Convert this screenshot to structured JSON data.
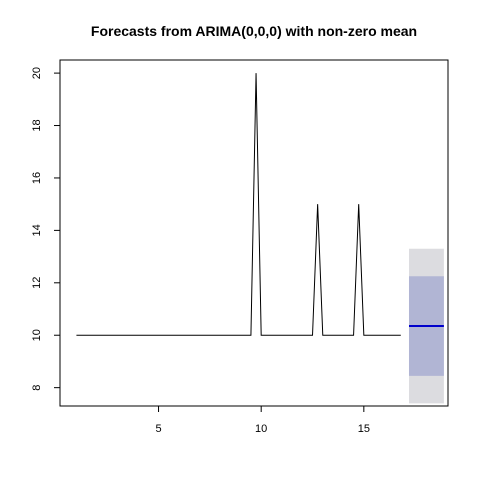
{
  "chart_data": {
    "type": "line",
    "title": "Forecasts from ARIMA(0,0,0) with non-zero mean",
    "xlabel": "",
    "ylabel": "",
    "xlim": [
      0.2,
      19.1
    ],
    "ylim": [
      7.3,
      20.5
    ],
    "x_ticks": [
      5,
      10,
      15
    ],
    "y_ticks": [
      8,
      10,
      12,
      14,
      16,
      18,
      20
    ],
    "grid": false,
    "series": [
      {
        "points": [
          [
            1,
            10
          ],
          [
            9.5,
            10
          ],
          [
            9.75,
            20
          ],
          [
            10,
            10
          ],
          [
            12.5,
            10
          ],
          [
            12.75,
            15
          ],
          [
            13,
            10
          ],
          [
            14.5,
            10
          ],
          [
            14.75,
            15
          ],
          [
            15,
            10
          ],
          [
            16.8,
            10
          ]
        ]
      }
    ],
    "forecast": {
      "x_range": [
        17.2,
        18.9
      ],
      "mean": 10.35,
      "interval_80": [
        8.45,
        12.25
      ],
      "interval_95": [
        7.4,
        13.3
      ]
    },
    "colors": {
      "line": "#000000",
      "forecast_mean": "#0000cc",
      "interval_80": "#b1b5d4",
      "interval_95": "#dcdce0"
    }
  }
}
